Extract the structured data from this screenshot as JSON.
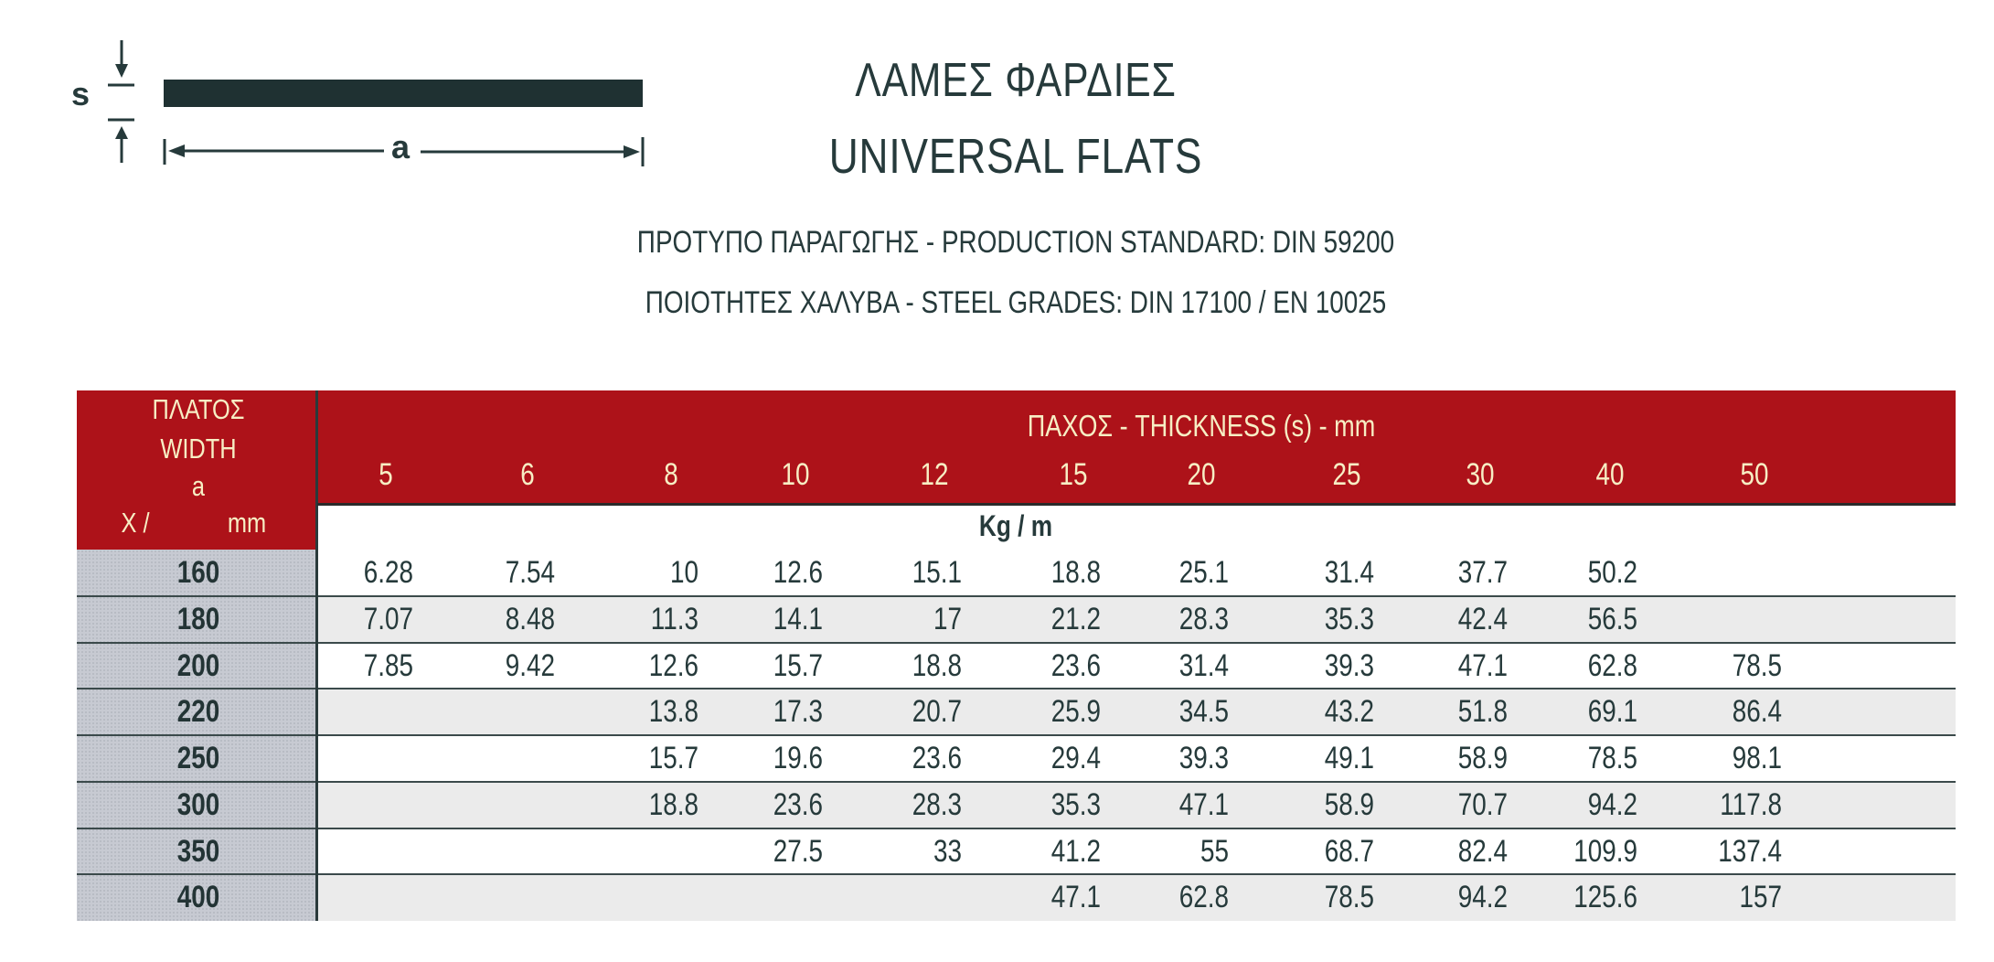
{
  "diagram": {
    "thickness_label": "s",
    "width_label": "a",
    "bar_color": "#1f3132"
  },
  "header": {
    "title_greek": "ΛΑΜΕΣ ΦΑΡΔΙΕΣ",
    "title_english": "UNIVERSAL FLATS",
    "standard": "ΠΡΟΤΥΠΟ ΠΑΡΑΓΩΓΗΣ - PRODUCTION STANDARD: DIN 59200",
    "grades": "ΠΟΙΟΤΗΤΕΣ ΧΑΛΥΒΑ - STEEL GRADES: DIN 17100 / EN 10025"
  },
  "colors": {
    "header_red": "#ad1219",
    "header_text": "#f7eec4",
    "width_column": "#c7cad2",
    "text": "#263a3b"
  },
  "table": {
    "width_header": {
      "line1": "ΠΛΑΤΟΣ",
      "line2": "WIDTH",
      "line3": "a",
      "line4_left": "X /",
      "line4_right": "mm"
    },
    "thickness_header": "ΠΑΧΟΣ - THICKNESS (s) - mm",
    "unit": "Kg / m",
    "thicknesses": [
      "5",
      "6",
      "8",
      "10",
      "12",
      "15",
      "20",
      "25",
      "30",
      "40",
      "50"
    ],
    "rows": [
      {
        "width": "160",
        "values": [
          "6.28",
          "7.54",
          "10",
          "12.6",
          "15.1",
          "18.8",
          "25.1",
          "31.4",
          "37.7",
          "50.2",
          ""
        ]
      },
      {
        "width": "180",
        "values": [
          "7.07",
          "8.48",
          "11.3",
          "14.1",
          "17",
          "21.2",
          "28.3",
          "35.3",
          "42.4",
          "56.5",
          ""
        ]
      },
      {
        "width": "200",
        "values": [
          "7.85",
          "9.42",
          "12.6",
          "15.7",
          "18.8",
          "23.6",
          "31.4",
          "39.3",
          "47.1",
          "62.8",
          "78.5"
        ]
      },
      {
        "width": "220",
        "values": [
          "",
          "",
          "13.8",
          "17.3",
          "20.7",
          "25.9",
          "34.5",
          "43.2",
          "51.8",
          "69.1",
          "86.4"
        ]
      },
      {
        "width": "250",
        "values": [
          "",
          "",
          "15.7",
          "19.6",
          "23.6",
          "29.4",
          "39.3",
          "49.1",
          "58.9",
          "78.5",
          "98.1"
        ]
      },
      {
        "width": "300",
        "values": [
          "",
          "",
          "18.8",
          "23.6",
          "28.3",
          "35.3",
          "47.1",
          "58.9",
          "70.7",
          "94.2",
          "117.8"
        ]
      },
      {
        "width": "350",
        "values": [
          "",
          "",
          "",
          "27.5",
          "33",
          "41.2",
          "55",
          "68.7",
          "82.4",
          "109.9",
          "137.4"
        ]
      },
      {
        "width": "400",
        "values": [
          "",
          "",
          "",
          "",
          "",
          "47.1",
          "62.8",
          "78.5",
          "94.2",
          "125.6",
          "157"
        ]
      }
    ]
  }
}
